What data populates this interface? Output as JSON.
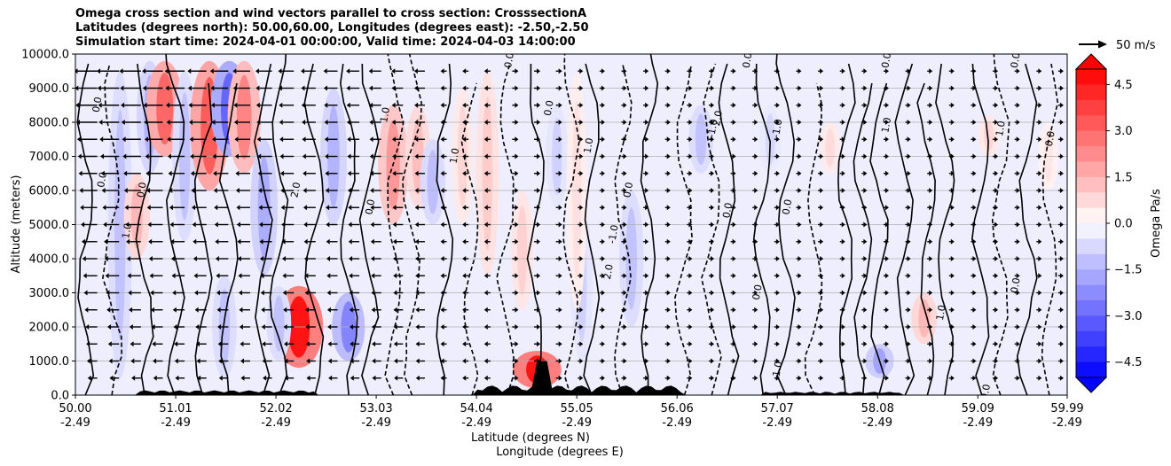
{
  "chart_data": {
    "type": "heatmap",
    "title_lines": [
      "Omega cross section and wind vectors parallel to cross section: CrosssectionA",
      "Latitudes (degrees north): 50.00,60.00, Longitudes (degrees east): -2.50,-2.50",
      "Simulation start time: 2024-04-01 00:00:00, Valid time: 2024-04-03 14:00:00"
    ],
    "ylabel": "Altitude (meters)",
    "xlabel_lat": "Latitude (degrees N)",
    "xlabel_lon": "Longitude (degrees E)",
    "ylim": [
      0,
      10000
    ],
    "xlim": [
      50.0,
      59.99
    ],
    "y_ticks": [
      {
        "value": 0,
        "label": "0.0"
      },
      {
        "value": 1000,
        "label": "1000.0"
      },
      {
        "value": 2000,
        "label": "2000.0"
      },
      {
        "value": 3000,
        "label": "3000.0"
      },
      {
        "value": 4000,
        "label": "4000.0"
      },
      {
        "value": 5000,
        "label": "5000.0"
      },
      {
        "value": 6000,
        "label": "6000.0"
      },
      {
        "value": 7000,
        "label": "7000.0"
      },
      {
        "value": 8000,
        "label": "8000.0"
      },
      {
        "value": 9000,
        "label": "9000.0"
      },
      {
        "value": 10000,
        "label": "10000.0"
      }
    ],
    "x_ticks": [
      {
        "lat": 50.0,
        "lat_label": "50.00",
        "lon_label": "-2.49"
      },
      {
        "lat": 51.01,
        "lat_label": "51.01",
        "lon_label": "-2.49"
      },
      {
        "lat": 52.02,
        "lat_label": "52.02",
        "lon_label": "-2.49"
      },
      {
        "lat": 53.03,
        "lat_label": "53.03",
        "lon_label": "-2.49"
      },
      {
        "lat": 54.04,
        "lat_label": "54.04",
        "lon_label": "-2.49"
      },
      {
        "lat": 55.05,
        "lat_label": "55.05",
        "lon_label": "-2.49"
      },
      {
        "lat": 56.06,
        "lat_label": "56.06",
        "lon_label": "-2.49"
      },
      {
        "lat": 57.07,
        "lat_label": "57.07",
        "lon_label": "-2.49"
      },
      {
        "lat": 58.08,
        "lat_label": "58.08",
        "lon_label": "-2.49"
      },
      {
        "lat": 59.09,
        "lat_label": "59.09",
        "lon_label": "-2.49"
      },
      {
        "lat": 59.99,
        "lat_label": "59.99",
        "lon_label": "-2.49"
      }
    ],
    "colorbar": {
      "label": "Omega Pa/s",
      "range": [
        -5,
        5
      ],
      "ticks": [
        {
          "value": 4.5,
          "label": "4.5"
        },
        {
          "value": 3.0,
          "label": "3.0"
        },
        {
          "value": 1.5,
          "label": "1.5"
        },
        {
          "value": 0.0,
          "label": "0.0"
        },
        {
          "value": -1.5,
          "label": "−1.5"
        },
        {
          "value": -3.0,
          "label": "−3.0"
        },
        {
          "value": -4.5,
          "label": "−4.5"
        }
      ],
      "neg_color": "#0000ff",
      "pos_color": "#ff0000",
      "mid_color": "#ffffff"
    },
    "quiver_key": {
      "label": "50 m/s",
      "speed": 50
    },
    "omega_features": [
      {
        "lat": 50.45,
        "z0": 500,
        "z1": 9500,
        "val": -1.2
      },
      {
        "lat": 50.62,
        "z0": 4000,
        "z1": 6500,
        "val": 1.4
      },
      {
        "lat": 50.75,
        "z0": 6500,
        "z1": 9800,
        "val": -1.5
      },
      {
        "lat": 50.9,
        "z0": 7000,
        "z1": 9800,
        "val": 3.0
      },
      {
        "lat": 51.1,
        "z0": 4500,
        "z1": 9500,
        "val": -1.2
      },
      {
        "lat": 51.35,
        "z0": 6000,
        "z1": 9800,
        "val": 3.2
      },
      {
        "lat": 51.55,
        "z0": 7000,
        "z1": 9800,
        "val": -3.0
      },
      {
        "lat": 51.7,
        "z0": 6500,
        "z1": 9800,
        "val": 2.4
      },
      {
        "lat": 51.9,
        "z0": 3500,
        "z1": 7500,
        "val": -1.6
      },
      {
        "lat": 51.5,
        "z0": 500,
        "z1": 3500,
        "val": -1.2
      },
      {
        "lat": 52.25,
        "z0": 800,
        "z1": 3200,
        "val": 4.6
      },
      {
        "lat": 52.05,
        "z0": 1000,
        "z1": 3200,
        "val": -1.2
      },
      {
        "lat": 52.6,
        "z0": 5000,
        "z1": 9000,
        "val": -1.5
      },
      {
        "lat": 52.75,
        "z0": 1000,
        "z1": 3000,
        "val": -2.4
      },
      {
        "lat": 53.2,
        "z0": 5000,
        "z1": 8500,
        "val": 2.0
      },
      {
        "lat": 53.45,
        "z0": 5500,
        "z1": 8500,
        "val": 1.3
      },
      {
        "lat": 53.6,
        "z0": 5000,
        "z1": 7500,
        "val": -1.3
      },
      {
        "lat": 53.9,
        "z0": 5000,
        "z1": 9000,
        "val": 0.8
      },
      {
        "lat": 54.15,
        "z0": 3500,
        "z1": 9500,
        "val": 1.0
      },
      {
        "lat": 54.5,
        "z0": 2500,
        "z1": 6000,
        "val": 0.9
      },
      {
        "lat": 54.85,
        "z0": 5500,
        "z1": 8500,
        "val": -0.9
      },
      {
        "lat": 55.1,
        "z0": 1000,
        "z1": 5500,
        "val": -0.9
      },
      {
        "lat": 55.6,
        "z0": 2000,
        "z1": 6000,
        "val": -1.2
      },
      {
        "lat": 56.3,
        "z0": 6500,
        "z1": 8500,
        "val": -1.2
      },
      {
        "lat": 54.65,
        "z0": 200,
        "z1": 1300,
        "val": 4.6
      },
      {
        "lat": 55.05,
        "z0": 2500,
        "z1": 9500,
        "val": 0.6
      },
      {
        "lat": 57.0,
        "z0": 6500,
        "z1": 8500,
        "val": -0.8
      },
      {
        "lat": 57.6,
        "z0": 6500,
        "z1": 8000,
        "val": 0.7
      },
      {
        "lat": 58.1,
        "z0": 500,
        "z1": 1500,
        "val": -1.8
      },
      {
        "lat": 58.55,
        "z0": 1500,
        "z1": 3000,
        "val": 1.4
      },
      {
        "lat": 59.2,
        "z0": 7000,
        "z1": 8200,
        "val": 0.8
      },
      {
        "lat": 59.8,
        "z0": 6000,
        "z1": 8000,
        "val": 0.5
      }
    ],
    "contour_labels": [
      {
        "lat": 50.25,
        "z": 8500,
        "text": "0.0"
      },
      {
        "lat": 50.3,
        "z": 6300,
        "text": "0.0"
      },
      {
        "lat": 50.55,
        "z": 4800,
        "text": "1.0"
      },
      {
        "lat": 50.7,
        "z": 6000,
        "text": "0.0"
      },
      {
        "lat": 52.25,
        "z": 6000,
        "text": "2.0"
      },
      {
        "lat": 53.0,
        "z": 5500,
        "text": "0.0"
      },
      {
        "lat": 53.15,
        "z": 8200,
        "text": "1.0"
      },
      {
        "lat": 53.85,
        "z": 7000,
        "text": "1.0"
      },
      {
        "lat": 54.4,
        "z": 9800,
        "text": "0.0"
      },
      {
        "lat": 54.8,
        "z": 8400,
        "text": "0.0"
      },
      {
        "lat": 55.2,
        "z": 7300,
        "text": "1.0"
      },
      {
        "lat": 55.45,
        "z": 4700,
        "text": "-1.0"
      },
      {
        "lat": 55.4,
        "z": 3600,
        "text": "2.0"
      },
      {
        "lat": 55.6,
        "z": 6000,
        "text": "0.0"
      },
      {
        "lat": 56.45,
        "z": 7800,
        "text": "-1.0"
      },
      {
        "lat": 56.5,
        "z": 8100,
        "text": "2.0"
      },
      {
        "lat": 56.6,
        "z": 5400,
        "text": "0.0"
      },
      {
        "lat": 57.1,
        "z": 7800,
        "text": "-1.0"
      },
      {
        "lat": 57.2,
        "z": 5500,
        "text": "0.0"
      },
      {
        "lat": 56.9,
        "z": 3000,
        "text": "0.0"
      },
      {
        "lat": 57.1,
        "z": 700,
        "text": "-1.0"
      },
      {
        "lat": 58.2,
        "z": 7900,
        "text": "1.0"
      },
      {
        "lat": 58.75,
        "z": 2400,
        "text": "1.0"
      },
      {
        "lat": 59.35,
        "z": 7800,
        "text": "1.0"
      },
      {
        "lat": 59.5,
        "z": 3200,
        "text": "0.0"
      },
      {
        "lat": 59.2,
        "z": 80,
        "text": "0.0"
      },
      {
        "lat": 59.85,
        "z": 7500,
        "text": "0.0"
      },
      {
        "lat": 56.8,
        "z": 9800,
        "text": "0.0"
      },
      {
        "lat": 58.2,
        "z": 9800,
        "text": "0.0"
      },
      {
        "lat": 59.5,
        "z": 9800,
        "text": "0.0"
      }
    ]
  }
}
